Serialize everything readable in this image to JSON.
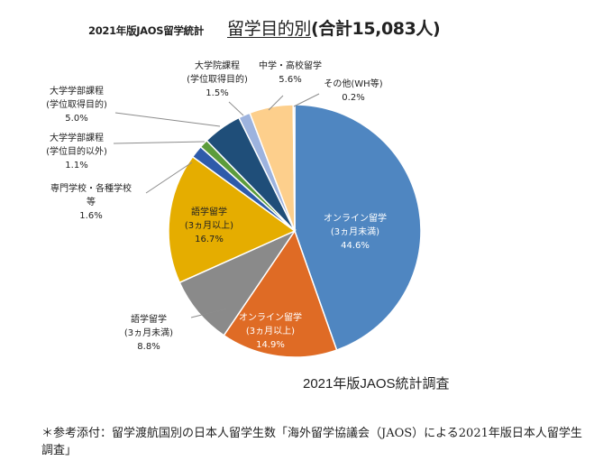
{
  "header": {
    "left_title": "2021年版JAOS留学統計",
    "right_title_main": "留学目的別",
    "right_title_total": "(合計15,083人)"
  },
  "source_label": "2021年版JAOS統計調査",
  "footnote": "＊参考添付：留学渡航国別の日本人留学生数「海外留学協議会（JAOS）による2021年版日本人留学生調査」",
  "chart_data": {
    "type": "pie",
    "title": "留学目的別(合計15,083人)",
    "total": 15083,
    "start_angle_deg": 0,
    "direction": "clockwise",
    "slices": [
      {
        "label_lines": [
          "オンライン留学",
          "(3ヵ月未満)"
        ],
        "value_text": "44.6%",
        "value": 44.6,
        "color": "#4f86c1"
      },
      {
        "label_lines": [
          "オンライン留学",
          "(3ヵ月以上)"
        ],
        "value_text": "14.9%",
        "value": 14.9,
        "color": "#df6b25"
      },
      {
        "label_lines": [
          "語学留学",
          "(3ヵ月未満)"
        ],
        "value_text": "8.8%",
        "value": 8.8,
        "color": "#8a8a8a"
      },
      {
        "label_lines": [
          "語学留学",
          "(3ヵ月以上)"
        ],
        "value_text": "16.7%",
        "value": 16.7,
        "color": "#e5ad00"
      },
      {
        "label_lines": [
          "専門学校・各種学校",
          "等"
        ],
        "value_text": "1.6%",
        "value": 1.6,
        "color": "#2e5baa"
      },
      {
        "label_lines": [
          "大学学部課程",
          "(学位目的以外)"
        ],
        "value_text": "1.1%",
        "value": 1.1,
        "color": "#5c9c3c"
      },
      {
        "label_lines": [
          "大学学部課程",
          "(学位取得目的)"
        ],
        "value_text": "5.0%",
        "value": 5.0,
        "color": "#1f4e79"
      },
      {
        "label_lines": [
          "大学院課程",
          "(学位取得目的)"
        ],
        "value_text": "1.5%",
        "value": 1.5,
        "color": "#9db3de"
      },
      {
        "label_lines": [
          "中学・高校留学"
        ],
        "value_text": "5.6%",
        "value": 5.6,
        "color": "#fdcf8c"
      },
      {
        "label_lines": [
          "その他(WH等)"
        ],
        "value_text": "0.2%",
        "value": 0.2,
        "color": "#c5d7ee"
      }
    ]
  }
}
